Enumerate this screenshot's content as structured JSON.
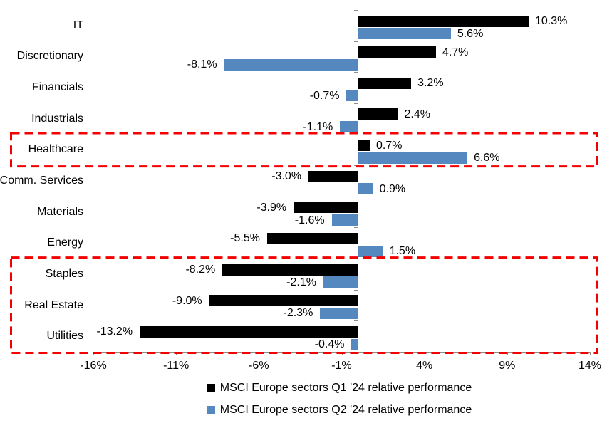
{
  "chart_data": {
    "type": "bar",
    "orientation": "horizontal",
    "title": "",
    "categories": [
      "IT",
      "Discretionary",
      "Financials",
      "Industrials",
      "Healthcare",
      "Comm. Services",
      "Materials",
      "Energy",
      "Staples",
      "Real Estate",
      "Utilities"
    ],
    "series": [
      {
        "name": "MSCI Europe sectors Q1 '24 relative performance",
        "color": "#000000",
        "values": [
          10.3,
          4.7,
          3.2,
          2.4,
          0.7,
          -3.0,
          -3.9,
          -5.5,
          -8.2,
          -9.0,
          -13.2
        ],
        "labels": [
          "10.3%",
          "4.7%",
          "3.2%",
          "2.4%",
          "0.7%",
          "-3.0%",
          "-3.9%",
          "-5.5%",
          "-8.2%",
          "-9.0%",
          "-13.2%"
        ]
      },
      {
        "name": "MSCI Europe sectors Q2 '24 relative performance",
        "color": "#5488BE",
        "values": [
          5.6,
          -8.1,
          -0.7,
          -1.1,
          6.6,
          0.9,
          -1.6,
          1.5,
          -2.1,
          -2.3,
          -0.4
        ],
        "labels": [
          "5.6%",
          "-8.1%",
          "-0.7%",
          "-1.1%",
          "6.6%",
          "0.9%",
          "-1.6%",
          "1.5%",
          "-2.1%",
          "-2.3%",
          "-0.4%"
        ]
      }
    ],
    "x_axis": {
      "min": -16,
      "max": 14,
      "ticks": [
        -16,
        -11,
        -6,
        -1,
        4,
        9,
        14
      ],
      "tick_labels": [
        "-16%",
        "-11%",
        "-6%",
        "-1%",
        "4%",
        "9%",
        "14%"
      ],
      "grid": false
    },
    "legend_position": "bottom",
    "highlights": [
      {
        "categories": [
          "Healthcare"
        ],
        "style": "red-dashed-box"
      },
      {
        "categories": [
          "Staples",
          "Real Estate",
          "Utilities"
        ],
        "style": "red-dashed-box"
      }
    ],
    "colors": {
      "q1_bar": "#000000",
      "q2_bar": "#5488BE",
      "highlight": "#f40000",
      "axis": "#8c8c8c",
      "text": "#000000"
    }
  }
}
